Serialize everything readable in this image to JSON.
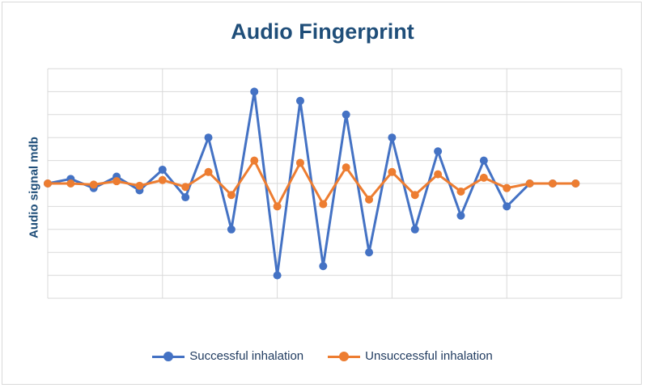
{
  "chart_data": {
    "type": "line",
    "title": "Audio Fingerprint",
    "xlabel": "",
    "ylabel": "Audio signal mdb",
    "x": [
      0,
      1,
      2,
      3,
      4,
      5,
      6,
      7,
      8,
      9,
      10,
      11,
      12,
      13,
      14,
      15,
      16,
      17,
      18,
      19,
      20,
      21,
      22,
      23
    ],
    "xlim": [
      0,
      25
    ],
    "ylim": [
      -5,
      5
    ],
    "grid": true,
    "legend_position": "bottom",
    "series": [
      {
        "name": "Successful inhalation",
        "color": "#4472c4",
        "values": [
          0,
          0.2,
          -0.2,
          0.3,
          -0.3,
          0.6,
          -0.6,
          2,
          -2,
          4,
          -4,
          3.6,
          -3.6,
          3,
          -3,
          2,
          -2,
          1.4,
          -1.4,
          1,
          -1,
          0,
          0,
          0
        ]
      },
      {
        "name": "Unsuccessful inhalation",
        "color": "#ed7d31",
        "values": [
          0,
          0,
          -0.05,
          0.1,
          -0.1,
          0.15,
          -0.15,
          0.5,
          -0.5,
          1,
          -1,
          0.9,
          -0.9,
          0.7,
          -0.7,
          0.5,
          -0.5,
          0.4,
          -0.35,
          0.25,
          -0.2,
          0,
          0,
          0
        ]
      }
    ]
  }
}
